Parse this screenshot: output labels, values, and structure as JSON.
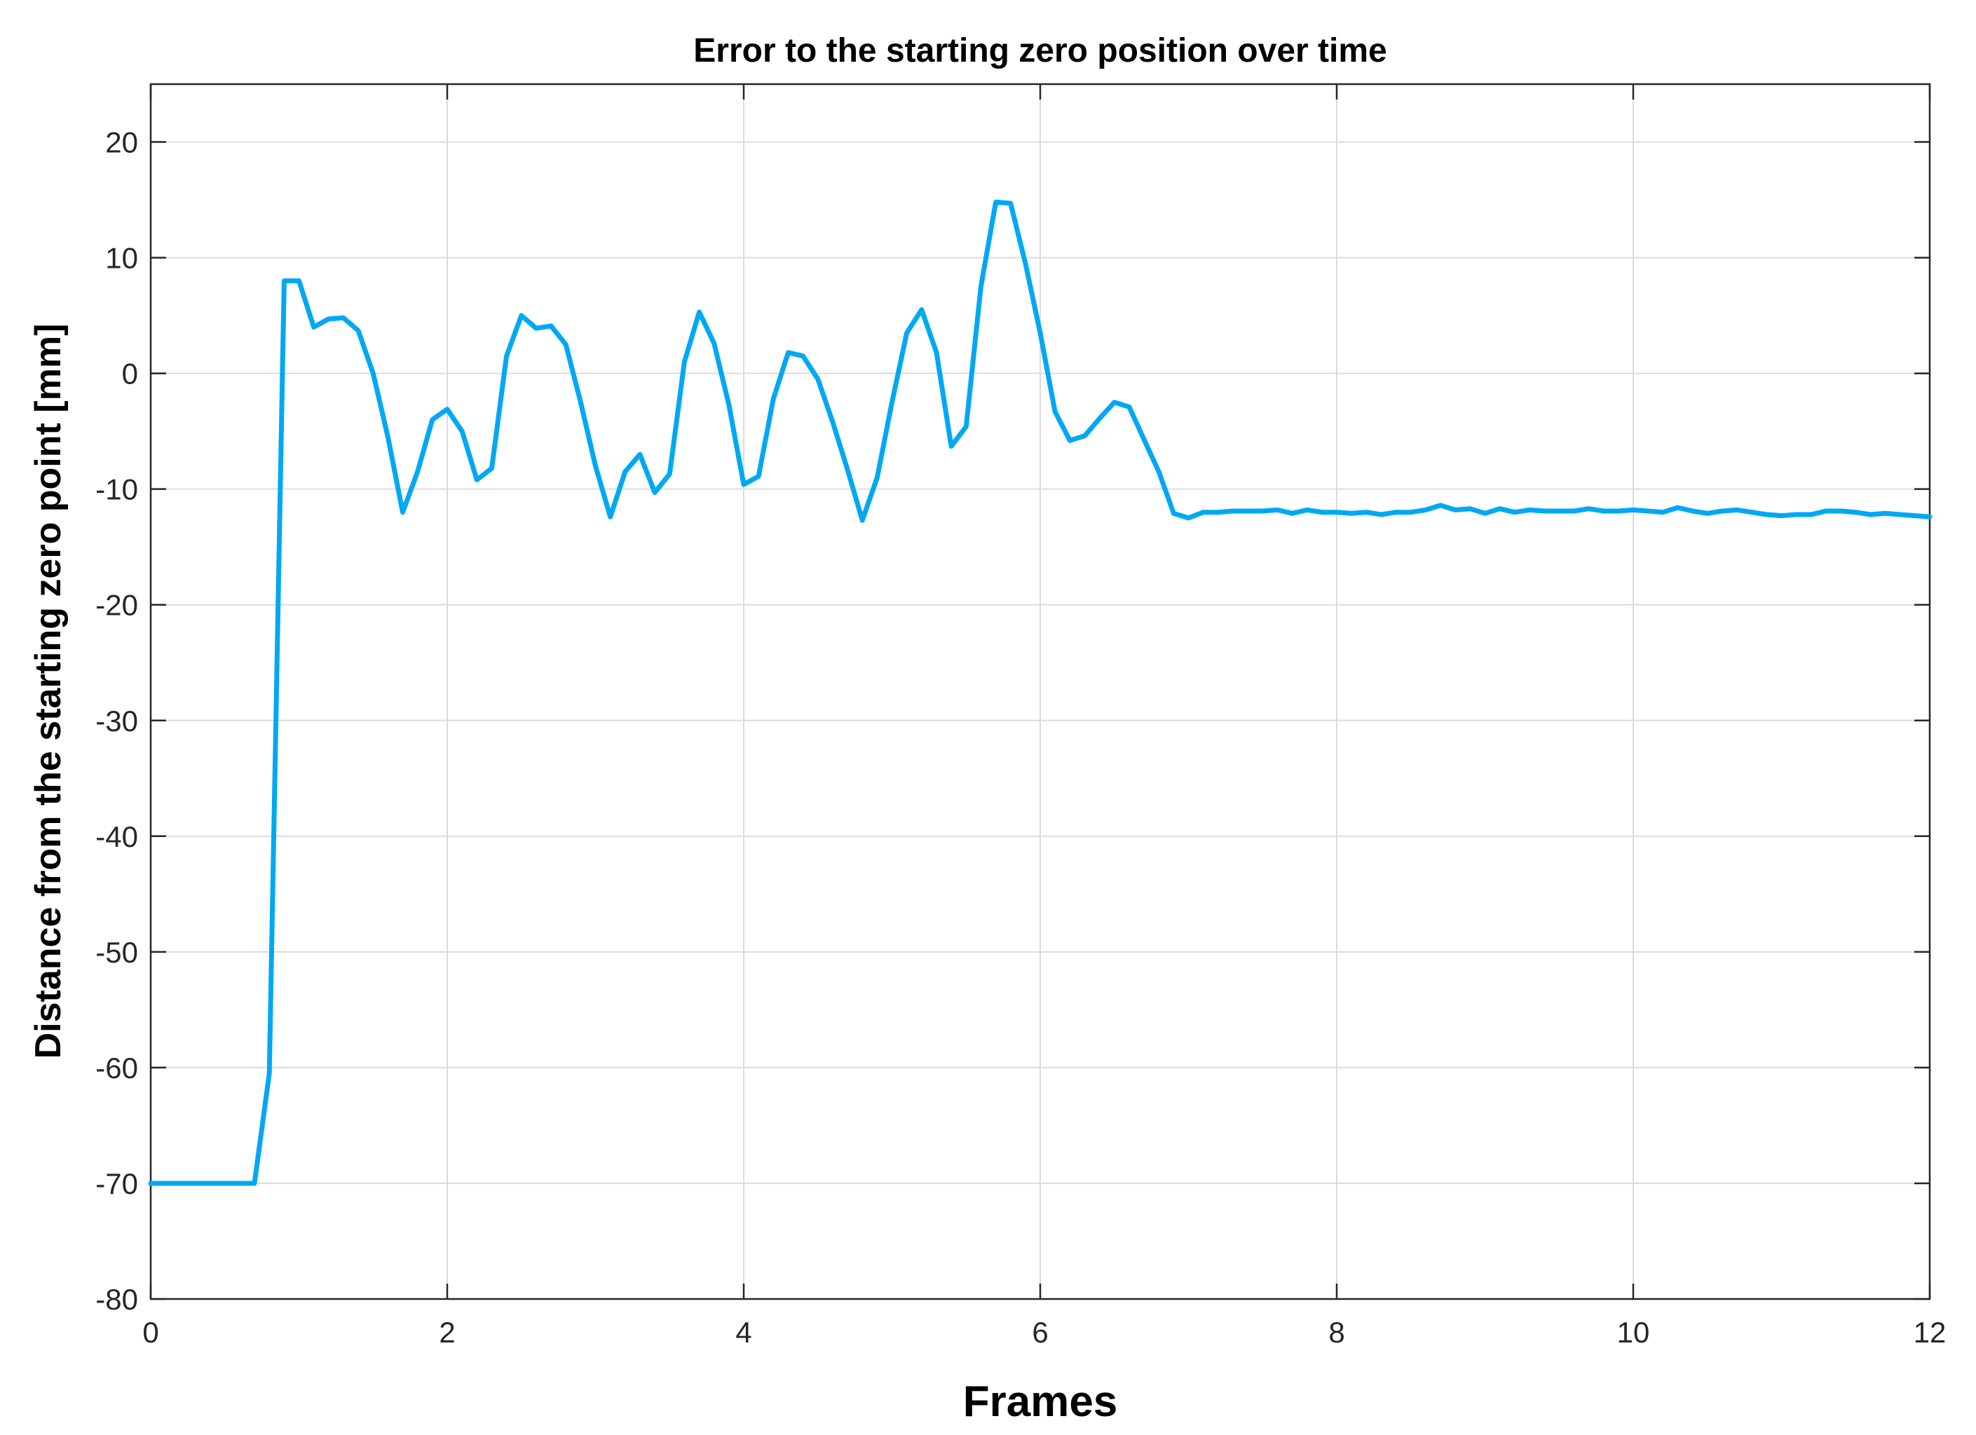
{
  "chart_data": {
    "type": "line",
    "title": "Error to the starting zero position over time",
    "xlabel": "Frames",
    "ylabel": "Distance from the starting zero point [mm]",
    "xlim": [
      0,
      12
    ],
    "ylim": [
      -80,
      25
    ],
    "xticks": [
      0,
      2,
      4,
      6,
      8,
      10,
      12
    ],
    "yticks": [
      20,
      10,
      0,
      -10,
      -20,
      -30,
      -40,
      -50,
      -60,
      -70,
      -80
    ],
    "grid": true,
    "line_color": "#00A8F3",
    "series": [
      {
        "x": [
          0,
          0.7,
          0.8,
          0.9,
          1.0,
          1.1,
          1.2,
          1.3,
          1.4,
          1.5,
          1.6,
          1.7,
          1.8,
          1.9,
          2.0,
          2.1,
          2.2,
          2.3,
          2.4,
          2.5,
          2.6,
          2.7,
          2.8,
          2.9,
          3.0,
          3.1,
          3.2,
          3.3,
          3.4,
          3.5,
          3.6,
          3.7,
          3.8,
          3.9,
          4.0,
          4.1,
          4.2,
          4.3,
          4.4,
          4.5,
          4.6,
          4.7,
          4.8,
          4.9,
          5.0,
          5.1,
          5.2,
          5.3,
          5.4,
          5.5,
          5.6,
          5.7,
          5.8,
          5.9,
          6.0,
          6.1,
          6.2,
          6.3,
          6.4,
          6.5,
          6.6,
          6.7,
          6.8,
          6.9,
          7.0,
          7.1,
          7.2,
          7.3,
          7.4,
          7.5,
          7.6,
          7.7,
          7.8,
          7.9,
          8.0,
          8.1,
          8.2,
          8.3,
          8.4,
          8.5,
          8.6,
          8.7,
          8.8,
          8.9,
          9.0,
          9.1,
          9.2,
          9.3,
          9.4,
          9.5,
          9.6,
          9.7,
          9.8,
          9.9,
          10.0,
          10.1,
          10.2,
          10.3,
          10.4,
          10.5,
          10.6,
          10.7,
          10.8,
          10.9,
          11.0,
          11.1,
          11.2,
          11.3,
          11.4,
          11.5,
          11.6,
          11.7,
          11.8,
          11.9,
          12.0
        ],
        "y": [
          -70,
          -70,
          -60.5,
          8,
          8,
          4,
          4.7,
          4.8,
          3.7,
          0,
          -5.5,
          -12,
          -8.5,
          -4,
          -3.1,
          -5,
          -9.2,
          -8.2,
          1.5,
          5,
          3.9,
          4.1,
          2.5,
          -2.5,
          -8,
          -12.4,
          -8.5,
          -7,
          -10.3,
          -8.7,
          1,
          5.3,
          2.6,
          -2.7,
          -9.6,
          -8.9,
          -2.2,
          1.8,
          1.5,
          -0.5,
          -4.2,
          -8.3,
          -12.7,
          -9,
          -2.5,
          3.5,
          5.5,
          1.8,
          -6.3,
          -4.6,
          7.5,
          14.8,
          14.7,
          9.5,
          3.5,
          -3.3,
          -5.8,
          -5.4,
          -3.9,
          -2.5,
          -2.9,
          -5.7,
          -8.5,
          -12.1,
          -12.5,
          -12,
          -12,
          -11.9,
          -11.9,
          -11.9,
          -11.8,
          -12.1,
          -11.8,
          -12,
          -12,
          -12.1,
          -12,
          -12.2,
          -12,
          -12,
          -11.8,
          -11.4,
          -11.8,
          -11.7,
          -12.1,
          -11.7,
          -12,
          -11.8,
          -11.9,
          -11.9,
          -11.9,
          -11.7,
          -11.9,
          -11.9,
          -11.8,
          -11.9,
          -12,
          -11.6,
          -11.9,
          -12.1,
          -11.9,
          -11.8,
          -12,
          -12.2,
          -12.3,
          -12.2,
          -12.2,
          -11.9,
          -11.9,
          -12,
          -12.2,
          -12.1,
          -12.2,
          -12.3,
          -12.4
        ]
      }
    ]
  }
}
